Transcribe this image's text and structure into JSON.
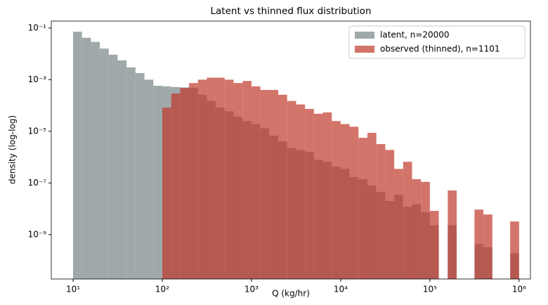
{
  "chart_data": {
    "type": "histogram",
    "title": "Latent vs thinned flux distribution",
    "x_label": "Q  (kg/hr)",
    "y_label": "density (log-log)",
    "log_x": true,
    "log_y": true,
    "legend": "upper right",
    "bins": [
      10,
      12.589,
      15.849,
      19.953,
      25.119,
      31.623,
      39.811,
      50.119,
      63.096,
      79.433,
      100,
      125.89,
      158.49,
      199.53,
      251.19,
      316.23,
      398.11,
      501.19,
      630.96,
      794.33,
      1000,
      1258.9,
      1584.9,
      1995.3,
      2511.9,
      3162.3,
      3981.1,
      5011.9,
      6309.6,
      7943.3,
      10000,
      12589,
      15849,
      19953,
      25119,
      31623,
      39811,
      50119,
      63096,
      79433,
      100000,
      125890,
      158490,
      199530,
      251190,
      316230,
      398110,
      501190,
      630960,
      794330,
      1000000
    ],
    "series": [
      {
        "name": "latent, n=20000",
        "color": "#7f8c8d",
        "values": [
          0.072,
          0.042,
          0.029,
          0.016,
          0.0093,
          0.0056,
          0.003,
          0.0018,
          0.001,
          0.00058,
          0.00055,
          0.00052,
          0.0005,
          0.00048,
          0.00026,
          0.00015,
          8.3e-05,
          6e-05,
          3.7e-05,
          2.5e-05,
          1.9e-05,
          1.3e-05,
          6.8e-06,
          4.1e-06,
          2.3e-06,
          1.9e-06,
          1.6e-06,
          7.9e-07,
          6.6e-07,
          4.3e-07,
          3.5e-07,
          1.7e-07,
          1.4e-07,
          7.9e-08,
          4.5e-08,
          2e-08,
          3.5e-08,
          1.2e-08,
          1.5e-08,
          7.2e-09,
          2.3e-09,
          0,
          2.3e-09,
          0,
          0,
          4.3e-10,
          3.2e-10,
          0,
          0,
          1.9e-10
        ]
      },
      {
        "name": "observed (thinned), n=1101",
        "color": "#c0392b",
        "values": [
          0,
          0,
          0,
          0,
          0,
          0,
          0,
          0,
          0,
          0,
          8.3e-05,
          0.00029,
          0.00048,
          0.00074,
          0.001,
          0.0012,
          0.0012,
          0.001,
          0.00074,
          0.00089,
          0.00055,
          0.0004,
          0.0004,
          0.00026,
          0.00015,
          0.00011,
          7.4e-05,
          4.8e-05,
          5.4e-05,
          2.5e-05,
          1.9e-05,
          1.5e-05,
          5.6e-06,
          8.7e-06,
          3.2e-06,
          1.9e-06,
          3.5e-07,
          6.6e-07,
          1.4e-07,
          1.1e-07,
          8.3e-09,
          0,
          5.1e-08,
          0,
          0,
          9.3e-09,
          6e-09,
          0,
          0,
          3.2e-09
        ]
      }
    ],
    "xlim": [
      5.7,
      1340000
    ],
    "ylim": [
      1.9e-11,
      0.186
    ],
    "xticks": [
      {
        "value": 10,
        "label": "10¹"
      },
      {
        "value": 100,
        "label": "10²"
      },
      {
        "value": 1000,
        "label": "10³"
      },
      {
        "value": 10000,
        "label": "10⁴"
      },
      {
        "value": 100000,
        "label": "10⁵"
      },
      {
        "value": 1000000,
        "label": "10⁶"
      }
    ],
    "yticks": [
      {
        "value": 0.1,
        "label": "10⁻¹"
      },
      {
        "value": 0.001,
        "label": "10⁻³"
      },
      {
        "value": 1e-05,
        "label": "10⁻⁵"
      },
      {
        "value": 1e-07,
        "label": "10⁻⁷"
      },
      {
        "value": 1e-09,
        "label": "10⁻⁹"
      }
    ]
  }
}
